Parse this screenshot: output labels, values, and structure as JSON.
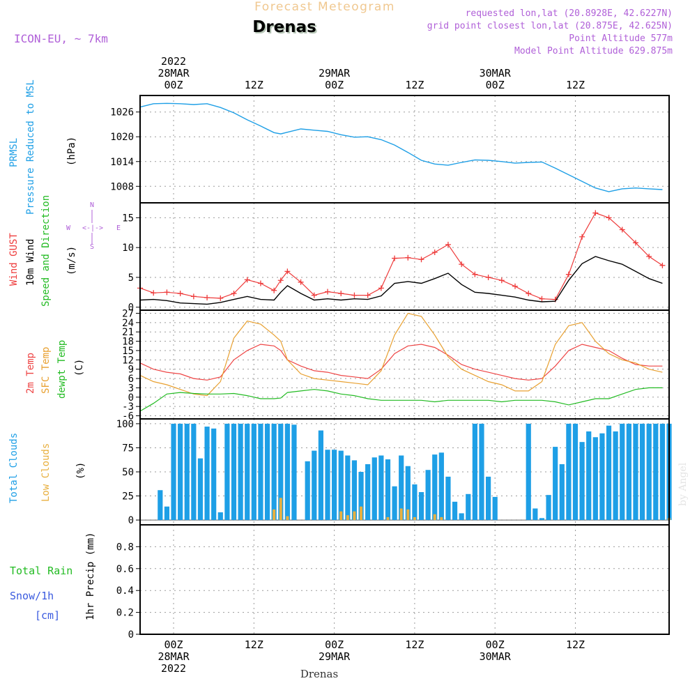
{
  "header": {
    "top_title": "Forecast Meteogram",
    "location": "Drenas",
    "model": "ICON-EU, ~ 7km",
    "requested": "requested lon,lat (20.8928E, 42.6227N)",
    "grid_point": "grid point closest lon,lat (20.875E, 42.625N)",
    "point_altitude": "Point Altitude 577m",
    "model_altitude": "Model Point Altitude 629.875m",
    "watermark": "by Angel",
    "bottom_location": "Drenas"
  },
  "time_axis": {
    "top_labels": [
      {
        "hour": 0,
        "lines": [
          "2022",
          "28MAR",
          "00Z"
        ]
      },
      {
        "hour": 12,
        "lines": [
          "12Z"
        ]
      },
      {
        "hour": 24,
        "lines": [
          "29MAR",
          "00Z"
        ]
      },
      {
        "hour": 36,
        "lines": [
          "12Z"
        ]
      },
      {
        "hour": 48,
        "lines": [
          "30MAR",
          "00Z"
        ]
      },
      {
        "hour": 60,
        "lines": [
          "12Z"
        ]
      }
    ],
    "bottom_labels": [
      {
        "hour": 0,
        "lines": [
          "00Z",
          "28MAR",
          "2022"
        ]
      },
      {
        "hour": 12,
        "lines": [
          "12Z"
        ]
      },
      {
        "hour": 24,
        "lines": [
          "00Z",
          "29MAR"
        ]
      },
      {
        "hour": 36,
        "lines": [
          "12Z"
        ]
      },
      {
        "hour": 48,
        "lines": [
          "00Z",
          "30MAR"
        ]
      },
      {
        "hour": 60,
        "lines": [
          "12Z"
        ]
      }
    ],
    "start_hour": -5,
    "end_hour": 74
  },
  "panel_labels": {
    "pressure": {
      "left": "PRMSL",
      "mid": "Pressure Reduced to MSL",
      "unit": "(hPa)"
    },
    "wind": {
      "gust": "Wind GUST",
      "speed": "10m Wind",
      "dir": "Speed and Direction",
      "unit": "(m/s)",
      "compass_n": "N",
      "compass_s": "S",
      "compass_w": "W",
      "compass_e": "E",
      "compass_mid": "<-|->"
    },
    "temp": {
      "t2m": "2m Temp",
      "sfc": "SFC Temp",
      "dew": "dewpt Temp",
      "unit": "(C)"
    },
    "clouds": {
      "total": "Total Clouds",
      "low": "Low Clouds",
      "unit": "(%)"
    },
    "precip": {
      "rain": "Total Rain",
      "snow": "Snow/1h",
      "snow_unit": "[cm]",
      "axis": "1hr Precip (mm)"
    }
  },
  "colors": {
    "pressure": "#1e9fe6",
    "gust": "#ee3b3b",
    "wind": "#000000",
    "t2m": "#ee4444",
    "sfc": "#e8a030",
    "dew": "#22bb22",
    "total_cloud": "#1e9fe6",
    "low_cloud": "#e8b040",
    "title": "#f0c890",
    "meta": "#b060d8",
    "rain": "#22bb22",
    "snow": "#3a5adf"
  },
  "chart_data": [
    {
      "type": "line",
      "name": "pressure",
      "ylabel": "(hPa)",
      "ylim": [
        1004,
        1030
      ],
      "yticks": [
        1008,
        1014,
        1020,
        1026
      ],
      "x": [
        -5,
        -3,
        -1,
        1,
        3,
        5,
        7,
        9,
        11,
        13,
        15,
        16,
        17,
        19,
        21,
        23,
        25,
        27,
        29,
        31,
        33,
        35,
        37,
        39,
        41,
        43,
        45,
        47,
        49,
        51,
        53,
        55,
        57,
        59,
        61,
        63,
        65,
        67,
        69,
        71,
        73
      ],
      "values": [
        1027.2,
        1028.0,
        1028.1,
        1028.0,
        1027.8,
        1028.0,
        1027.1,
        1025.8,
        1024.1,
        1022.6,
        1021.0,
        1020.7,
        1021.1,
        1021.9,
        1021.6,
        1021.3,
        1020.5,
        1019.9,
        1020.0,
        1019.3,
        1018.0,
        1016.2,
        1014.3,
        1013.4,
        1013.1,
        1013.8,
        1014.4,
        1014.3,
        1014.0,
        1013.6,
        1013.8,
        1013.9,
        1012.4,
        1010.8,
        1009.2,
        1007.6,
        1006.7,
        1007.4,
        1007.6,
        1007.4,
        1007.2
      ]
    },
    {
      "type": "line",
      "name": "wind",
      "ylabel": "(m/s)",
      "ylim": [
        -0.5,
        17.5
      ],
      "yticks": [
        0,
        5,
        10,
        15
      ],
      "x": [
        -5,
        -3,
        -1,
        1,
        3,
        5,
        7,
        9,
        11,
        13,
        15,
        16,
        17,
        19,
        21,
        23,
        25,
        27,
        29,
        31,
        33,
        35,
        37,
        39,
        41,
        43,
        45,
        47,
        49,
        51,
        53,
        55,
        57,
        59,
        61,
        63,
        65,
        67,
        69,
        71,
        73
      ],
      "series": [
        {
          "name": "Wind GUST",
          "values": [
            3.2,
            2.4,
            2.5,
            2.3,
            1.8,
            1.6,
            1.5,
            2.3,
            4.6,
            4.0,
            2.8,
            4.5,
            6.0,
            4.2,
            2.0,
            2.6,
            2.3,
            2.0,
            2.0,
            3.2,
            8.2,
            8.3,
            8.0,
            9.2,
            10.5,
            7.2,
            5.5,
            5.0,
            4.5,
            3.5,
            2.3,
            1.4,
            1.3,
            5.5,
            11.8,
            15.8,
            15.0,
            13.0,
            10.8,
            8.5,
            7.0
          ]
        },
        {
          "name": "10m Wind",
          "values": [
            1.2,
            1.3,
            1.1,
            0.7,
            0.6,
            0.5,
            0.8,
            1.3,
            1.8,
            1.3,
            1.2,
            2.5,
            3.6,
            2.3,
            1.2,
            1.4,
            1.2,
            1.4,
            1.3,
            1.9,
            4.0,
            4.3,
            4.0,
            4.8,
            5.7,
            3.8,
            2.5,
            2.3,
            2.0,
            1.7,
            1.2,
            0.9,
            1.0,
            4.5,
            7.3,
            8.5,
            7.8,
            7.2,
            6.0,
            4.8,
            4.0
          ]
        }
      ]
    },
    {
      "type": "line",
      "name": "temperature",
      "ylabel": "(C)",
      "ylim": [
        -7,
        28
      ],
      "yticks": [
        -6,
        -3,
        0,
        3,
        6,
        9,
        12,
        15,
        18,
        21,
        24,
        27
      ],
      "x": [
        -5,
        -3,
        -1,
        1,
        3,
        5,
        7,
        9,
        11,
        13,
        15,
        16,
        17,
        19,
        21,
        23,
        25,
        27,
        29,
        31,
        33,
        35,
        37,
        39,
        41,
        43,
        45,
        47,
        49,
        51,
        53,
        55,
        57,
        59,
        61,
        63,
        65,
        67,
        69,
        71,
        73
      ],
      "series": [
        {
          "name": "2m Temp",
          "values": [
            11.0,
            9.0,
            8.0,
            7.5,
            6.0,
            5.5,
            6.5,
            12.0,
            15.0,
            17.0,
            16.5,
            15.0,
            12.0,
            10.0,
            8.5,
            8.0,
            7.0,
            6.5,
            6.0,
            9.0,
            14.0,
            16.5,
            17.0,
            16.0,
            13.5,
            10.5,
            9.0,
            8.0,
            7.0,
            6.0,
            5.5,
            6.0,
            10.0,
            15.0,
            17.0,
            16.0,
            15.0,
            12.5,
            10.5,
            10.0,
            10.0
          ]
        },
        {
          "name": "SFC Temp",
          "values": [
            7.0,
            5.0,
            4.0,
            2.5,
            1.0,
            0.5,
            5.0,
            19.0,
            24.5,
            23.5,
            20.0,
            18.0,
            12.0,
            7.5,
            6.0,
            5.5,
            5.0,
            4.5,
            4.0,
            8.5,
            20.0,
            27.0,
            26.0,
            20.0,
            13.0,
            9.0,
            7.0,
            5.0,
            4.0,
            2.0,
            2.0,
            5.0,
            17.0,
            23.0,
            24.0,
            18.0,
            14.0,
            12.0,
            11.0,
            9.0,
            8.0
          ]
        },
        {
          "name": "dewpt Temp",
          "values": [
            -4.5,
            -2.0,
            1.0,
            1.5,
            1.2,
            1.0,
            1.0,
            1.2,
            0.5,
            -0.5,
            -0.5,
            -0.3,
            1.5,
            2.0,
            2.5,
            2.0,
            1.0,
            0.5,
            -0.5,
            -1.0,
            -1.0,
            -1.0,
            -1.0,
            -1.5,
            -1.0,
            -1.0,
            -1.0,
            -1.0,
            -1.5,
            -1.0,
            -1.0,
            -1.0,
            -1.5,
            -2.5,
            -1.5,
            -0.5,
            -0.5,
            1.0,
            2.5,
            3.0,
            3.0
          ]
        }
      ]
    },
    {
      "type": "bar",
      "name": "clouds",
      "ylabel": "(%)",
      "ylim": [
        -5,
        105
      ],
      "yticks": [
        0,
        25,
        50,
        75,
        100
      ],
      "x": [
        -5,
        -4,
        -3,
        -2,
        -1,
        0,
        1,
        2,
        3,
        4,
        5,
        6,
        7,
        8,
        9,
        10,
        11,
        12,
        13,
        14,
        15,
        16,
        17,
        18,
        19,
        20,
        21,
        22,
        23,
        24,
        25,
        26,
        27,
        28,
        29,
        30,
        31,
        32,
        33,
        34,
        35,
        36,
        37,
        38,
        39,
        40,
        41,
        42,
        43,
        44,
        45,
        46,
        47,
        48,
        49,
        50,
        51,
        52,
        53,
        54,
        55,
        56,
        57,
        58,
        59,
        60,
        61,
        62,
        63,
        64,
        65,
        66,
        67,
        68,
        69,
        70,
        71,
        72,
        73,
        74
      ],
      "series": [
        {
          "name": "Total Clouds",
          "values": [
            0,
            0,
            0,
            31,
            14,
            100,
            100,
            100,
            100,
            64,
            97,
            95,
            8,
            100,
            100,
            100,
            100,
            100,
            100,
            100,
            100,
            100,
            100,
            99,
            0,
            61,
            72,
            93,
            73,
            73,
            72,
            67,
            62,
            50,
            58,
            65,
            67,
            63,
            35,
            67,
            56,
            37,
            29,
            52,
            68,
            70,
            45,
            19,
            7,
            27,
            100,
            100,
            45,
            24,
            0,
            0,
            0,
            0,
            100,
            12,
            2,
            26,
            76,
            58,
            100,
            100,
            81,
            92,
            86,
            90,
            98,
            92,
            100,
            100,
            100,
            100,
            100,
            100,
            100,
            100
          ]
        },
        {
          "name": "Low Clouds",
          "values": [
            0,
            0,
            0,
            0,
            0,
            0,
            0,
            0,
            0,
            0,
            0,
            0,
            0,
            0,
            0,
            0,
            0,
            0,
            0,
            0,
            11,
            23,
            4,
            0,
            0,
            0,
            0,
            0,
            0,
            0,
            9,
            5,
            9,
            14,
            0,
            0,
            0,
            3,
            0,
            12,
            11,
            3,
            0,
            0,
            6,
            3,
            0,
            0,
            0,
            0,
            0,
            0,
            0,
            0,
            0,
            0,
            0,
            0,
            0,
            0,
            0,
            0,
            0,
            0,
            0,
            0,
            0,
            0,
            0,
            0,
            0,
            0,
            0,
            0,
            0,
            0,
            0,
            0,
            0,
            2
          ]
        }
      ]
    },
    {
      "type": "bar",
      "name": "precipitation",
      "ylabel": "1hr Precip (mm)",
      "ylim": [
        0,
        1.0
      ],
      "yticks": [
        0,
        0.2,
        0.4,
        0.6,
        0.8
      ],
      "x": [],
      "values": []
    }
  ]
}
